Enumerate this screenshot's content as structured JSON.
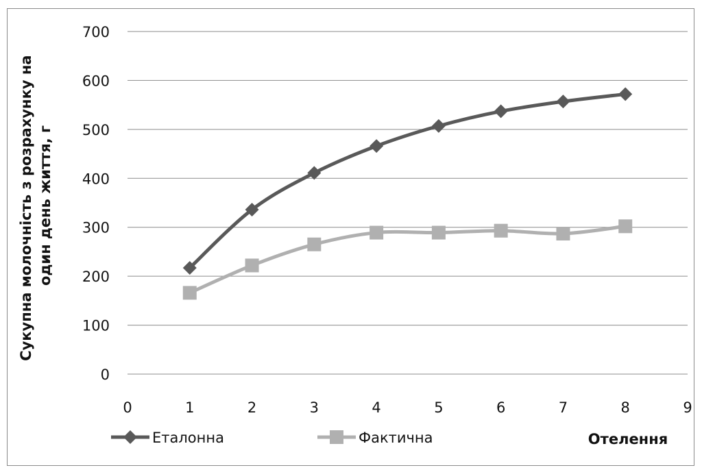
{
  "chart_data": {
    "type": "line",
    "title": "",
    "xlabel": "Отелення",
    "ylabel_lines": [
      "Сукупна молочність з розрахунку на",
      "один день життя, г"
    ],
    "xlim": [
      0,
      9
    ],
    "ylim": [
      0,
      700
    ],
    "x_ticks": [
      0,
      1,
      2,
      3,
      4,
      5,
      6,
      7,
      8,
      9
    ],
    "y_ticks": [
      0,
      100,
      200,
      300,
      400,
      500,
      600,
      700
    ],
    "grid": "horizontal",
    "legend_position": "bottom-left",
    "x": [
      1,
      2,
      3,
      4,
      5,
      6,
      7,
      8
    ],
    "series": [
      {
        "name": "Еталонна",
        "values": [
          217,
          336,
          411,
          466,
          507,
          537,
          557,
          572
        ],
        "color": "#595959",
        "marker": "diamond"
      },
      {
        "name": "Фактична",
        "values": [
          166,
          222,
          265,
          289,
          289,
          293,
          287,
          302
        ],
        "color": "#b0b0b0",
        "marker": "square"
      }
    ]
  }
}
